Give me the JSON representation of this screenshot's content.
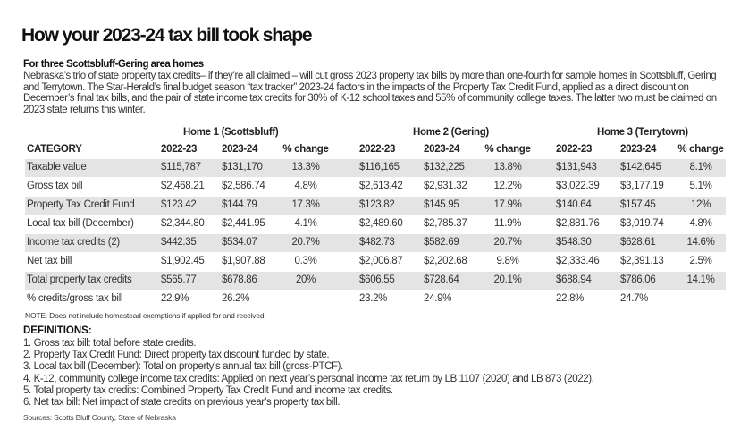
{
  "title": "How your 2023-24 tax bill took shape",
  "subtitle": "For three Scottsbluff-Gering area homes",
  "intro": "Nebraska’s trio of state property tax credits– if they’re all claimed – will cut gross 2023 property tax bills by more than one-fourth for sample homes in Scottsbluff, Gering and Terrytown. The Star-Herald’s final budget season “tax tracker” 2023-24 factors in the impacts of the Property Tax Credit Fund, applied as a direct discount on December’s final tax bills, and the pair of state income tax credits for 30% of K-12 school taxes and 55% of community college taxes. The latter two must be claimed on 2023 state returns this winter.",
  "homes": [
    "Home 1 (Scottsbluff)",
    "Home 2 (Gering)",
    "Home 3 (Terrytown)"
  ],
  "columns": [
    "CATEGORY",
    "2022-23",
    "2023-24",
    "% change",
    "2022-23",
    "2023-24",
    "% change",
    "2022-23",
    "2023-24",
    "% change"
  ],
  "rows": [
    [
      "Taxable value",
      "$115,787",
      "$131,170",
      "13.3%",
      "$116,165",
      "$132,225",
      "13.8%",
      "$131,943",
      "$142,645",
      "8.1%"
    ],
    [
      "Gross tax bill",
      "$2,468.21",
      "$2,586.74",
      "4.8%",
      "$2,613.42",
      "$2,931.32",
      "12.2%",
      "$3,022.39",
      "$3,177.19",
      "5.1%"
    ],
    [
      "Property Tax Credit Fund",
      "$123.42",
      "$144.79",
      "17.3%",
      "$123.82",
      "$145.95",
      "17.9%",
      "$140.64",
      "$157.45",
      "12%"
    ],
    [
      "Local tax bill (December)",
      "$2,344.80",
      "$2,441.95",
      "4.1%",
      "$2,489.60",
      "$2,785.37",
      "11.9%",
      "$2,881.76",
      "$3,019.74",
      "4.8%"
    ],
    [
      "Income tax credits (2)",
      "$442.35",
      "$534.07",
      "20.7%",
      "$482.73",
      "$582.69",
      "20.7%",
      "$548.30",
      "$628.61",
      "14.6%"
    ],
    [
      "Net tax bill",
      "$1,902.45",
      "$1,907.88",
      "0.3%",
      "$2,006.87",
      "$2,202.68",
      "9.8%",
      "$2,333.46",
      "$2,391.13",
      "2.5%"
    ],
    [
      "Total property tax credits",
      "$565.77",
      "$678.86",
      "20%",
      "$606.55",
      "$728.64",
      "20.1%",
      "$688.94",
      "$786.06",
      "14.1%"
    ],
    [
      "% credits/gross tax bill",
      "22.9%",
      "26.2%",
      "",
      "23.2%",
      "24.9%",
      "",
      "22.8%",
      "24.7%",
      ""
    ]
  ],
  "note": "NOTE: Does not include homestead exemptions if applied for and received.",
  "definitions_heading": "DEFINITIONS:",
  "definitions": [
    "1. Gross tax bill: total before state credits.",
    "2. Property Tax Credit Fund: Direct property tax discount funded by state.",
    "3. Local tax bill (December): Total on property’s annual tax bill (gross-PTCF).",
    "4. K-12, community college income tax credits: Applied on next year’s personal income tax return by LB 1107 (2020) and LB 873 (2022).",
    "5. Total property tax credits: Combined Property Tax Credit Fund and income tax credits.",
    "6. Net tax bill: Net impact of state credits on previous year’s property tax bill."
  ],
  "sources": "Sources: Scotts Bluff County, State of Nebraska",
  "colors": {
    "row_shade": "#e4e4e4",
    "text": "#222222"
  }
}
